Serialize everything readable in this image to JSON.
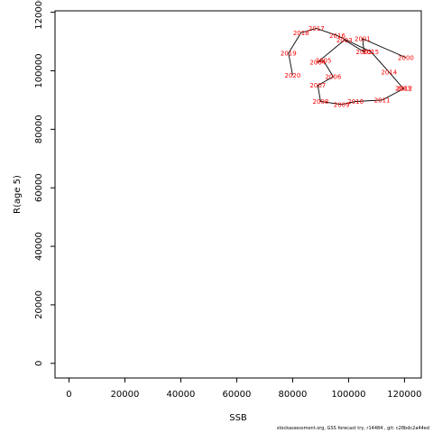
{
  "chart_data": {
    "type": "line",
    "xlabel": "SSB",
    "ylabel": "R(age 5)",
    "xlim": [
      -5000,
      126000
    ],
    "ylim": [
      -5000,
      120500
    ],
    "x_ticks": [
      0,
      20000,
      40000,
      60000,
      80000,
      100000,
      120000
    ],
    "y_ticks": [
      0,
      20000,
      40000,
      60000,
      80000,
      100000,
      120000
    ],
    "grid": false,
    "line_color": "#000000",
    "label_color": "#ff0000",
    "points": [
      {
        "label": "2000",
        "x": 120500,
        "y": 104500
      },
      {
        "label": "2001",
        "x": 105000,
        "y": 111000
      },
      {
        "label": "2002",
        "x": 105500,
        "y": 106500
      },
      {
        "label": "2003",
        "x": 98500,
        "y": 110500
      },
      {
        "label": "2004",
        "x": 89000,
        "y": 103000
      },
      {
        "label": "2005",
        "x": 91000,
        "y": 103500
      },
      {
        "label": "2006",
        "x": 94500,
        "y": 98000
      },
      {
        "label": "2007",
        "x": 89000,
        "y": 95000
      },
      {
        "label": "2008",
        "x": 90000,
        "y": 89500
      },
      {
        "label": "2009",
        "x": 97500,
        "y": 88500
      },
      {
        "label": "2010",
        "x": 102500,
        "y": 89500
      },
      {
        "label": "2011",
        "x": 112000,
        "y": 90000
      },
      {
        "label": "2012",
        "x": 120000,
        "y": 94000
      },
      {
        "label": "2013",
        "x": 119500,
        "y": 94000
      },
      {
        "label": "2014",
        "x": 114500,
        "y": 99500
      },
      {
        "label": "2015",
        "x": 108000,
        "y": 106500
      },
      {
        "label": "2016",
        "x": 96000,
        "y": 112000
      },
      {
        "label": "2017",
        "x": 88500,
        "y": 114500
      },
      {
        "label": "2018",
        "x": 83000,
        "y": 113000
      },
      {
        "label": "2019",
        "x": 78500,
        "y": 106000
      },
      {
        "label": "2020",
        "x": 80000,
        "y": 98500
      }
    ]
  },
  "footer_text": "stockassessment.org, GSS forecast try, r14484 , git: c28bdc2a44ed"
}
